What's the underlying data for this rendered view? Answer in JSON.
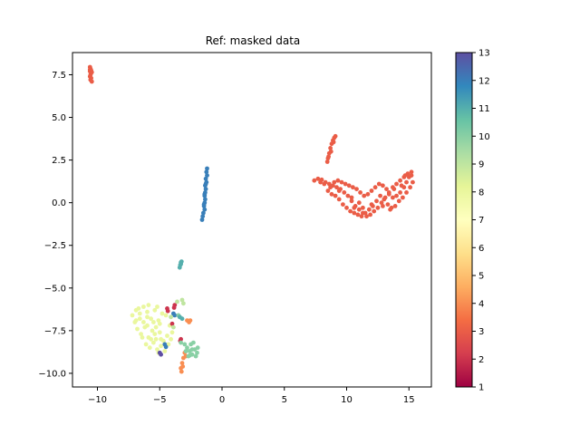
{
  "chart_data": {
    "type": "scatter",
    "title": "Ref: masked data",
    "xlabel": "",
    "ylabel": "",
    "xlim": [
      -12,
      16.8
    ],
    "ylim": [
      -10.8,
      8.8
    ],
    "x_ticks": [
      -10,
      -5,
      0,
      5,
      10,
      15
    ],
    "x_tick_labels": [
      "−10",
      "−5",
      "0",
      "5",
      "10",
      "15"
    ],
    "y_ticks": [
      -10.0,
      -7.5,
      -5.0,
      -2.5,
      0.0,
      2.5,
      5.0,
      7.5
    ],
    "y_tick_labels": [
      "−10.0",
      "−7.5",
      "−5.0",
      "−2.5",
      "0.0",
      "2.5",
      "5.0",
      "7.5"
    ],
    "grid": false,
    "colormap": "Spectral",
    "colorbar": {
      "range": [
        1,
        13
      ],
      "ticks": [
        1,
        2,
        3,
        4,
        5,
        6,
        7,
        8,
        9,
        10,
        11,
        12,
        13
      ],
      "tick_labels": [
        "1",
        "2",
        "3",
        "4",
        "5",
        "6",
        "7",
        "8",
        "9",
        "10",
        "11",
        "12",
        "13"
      ],
      "colors": [
        "#9e0142",
        "#d53e4f",
        "#f46d43",
        "#fdae61",
        "#fee08b",
        "#ffffbf",
        "#e6f598",
        "#abdda4",
        "#66c2a5",
        "#3288bd",
        "#5e4fa2"
      ]
    },
    "clusters": [
      {
        "value": 3,
        "points": [
          [
            -10.6,
            7.95
          ],
          [
            -10.55,
            7.85
          ],
          [
            -10.5,
            7.75
          ],
          [
            -10.6,
            7.7
          ],
          [
            -10.5,
            7.6
          ],
          [
            -10.55,
            7.5
          ],
          [
            -10.6,
            7.4
          ],
          [
            -10.5,
            7.3
          ],
          [
            -10.55,
            7.2
          ],
          [
            -10.45,
            7.1
          ],
          [
            -10.6,
            7.8
          ],
          [
            -10.45,
            7.65
          ]
        ]
      },
      {
        "value": 12,
        "points": [
          [
            -1.2,
            2.0
          ],
          [
            -1.25,
            1.8
          ],
          [
            -1.2,
            1.6
          ],
          [
            -1.3,
            1.4
          ],
          [
            -1.25,
            1.2
          ],
          [
            -1.35,
            1.0
          ],
          [
            -1.3,
            0.8
          ],
          [
            -1.35,
            0.6
          ],
          [
            -1.4,
            0.4
          ],
          [
            -1.35,
            0.2
          ],
          [
            -1.4,
            0.0
          ],
          [
            -1.45,
            -0.2
          ],
          [
            -1.4,
            -0.4
          ],
          [
            -1.5,
            -0.6
          ],
          [
            -1.55,
            -0.8
          ],
          [
            -1.6,
            -1.0
          ],
          [
            -1.3,
            1.1
          ],
          [
            -1.4,
            0.5
          ],
          [
            -1.45,
            -0.1
          ]
        ]
      },
      {
        "value": 11,
        "points": [
          [
            -3.3,
            -3.5
          ],
          [
            -3.35,
            -3.65
          ],
          [
            -3.4,
            -3.8
          ],
          [
            -3.3,
            -3.6
          ],
          [
            -3.25,
            -3.45
          ]
        ]
      },
      {
        "value": 3,
        "points": [
          [
            7.4,
            1.3
          ],
          [
            7.7,
            1.4
          ],
          [
            8.0,
            1.35
          ],
          [
            8.3,
            1.2
          ],
          [
            8.6,
            1.1
          ],
          [
            8.9,
            1.0
          ],
          [
            9.2,
            0.9
          ],
          [
            9.5,
            0.8
          ],
          [
            9.8,
            0.6
          ],
          [
            10.1,
            0.4
          ],
          [
            10.4,
            0.1
          ],
          [
            10.7,
            -0.2
          ],
          [
            11.0,
            -0.4
          ],
          [
            11.3,
            -0.6
          ],
          [
            11.6,
            -0.8
          ],
          [
            11.9,
            -0.7
          ],
          [
            12.2,
            -0.5
          ],
          [
            12.5,
            -0.3
          ],
          [
            12.8,
            0.0
          ],
          [
            13.1,
            0.3
          ],
          [
            13.4,
            0.6
          ],
          [
            13.7,
            0.9
          ],
          [
            14.0,
            1.1
          ],
          [
            14.3,
            1.3
          ],
          [
            14.6,
            1.5
          ],
          [
            14.9,
            1.7
          ],
          [
            15.2,
            1.8
          ],
          [
            15.0,
            1.5
          ],
          [
            14.8,
            1.2
          ],
          [
            14.6,
            0.9
          ],
          [
            14.3,
            0.6
          ],
          [
            14.0,
            0.4
          ],
          [
            13.7,
            0.3
          ],
          [
            13.4,
            0.5
          ],
          [
            13.2,
            0.8
          ],
          [
            12.9,
            1.0
          ],
          [
            12.6,
            1.1
          ],
          [
            12.3,
            0.9
          ],
          [
            12.0,
            0.7
          ],
          [
            11.7,
            0.5
          ],
          [
            11.4,
            0.4
          ],
          [
            11.1,
            0.6
          ],
          [
            10.8,
            0.8
          ],
          [
            10.5,
            0.9
          ],
          [
            10.2,
            1.0
          ],
          [
            9.9,
            1.1
          ],
          [
            9.6,
            1.2
          ],
          [
            9.3,
            1.3
          ],
          [
            9.0,
            1.2
          ],
          [
            8.7,
            0.9
          ],
          [
            8.5,
            0.7
          ],
          [
            8.8,
            0.5
          ],
          [
            9.1,
            0.4
          ],
          [
            9.4,
            0.2
          ],
          [
            9.7,
            -0.1
          ],
          [
            10.0,
            -0.3
          ],
          [
            10.3,
            -0.5
          ],
          [
            10.6,
            -0.6
          ],
          [
            10.9,
            -0.7
          ],
          [
            11.2,
            -0.8
          ],
          [
            11.5,
            -0.6
          ],
          [
            11.8,
            -0.4
          ],
          [
            12.1,
            -0.2
          ],
          [
            12.4,
            0.1
          ],
          [
            12.7,
            0.4
          ],
          [
            13.0,
            0.2
          ],
          [
            13.3,
            -0.1
          ],
          [
            13.6,
            -0.3
          ],
          [
            13.9,
            -0.2
          ],
          [
            14.2,
            0.1
          ],
          [
            14.5,
            0.3
          ],
          [
            14.8,
            0.6
          ],
          [
            15.1,
            0.9
          ],
          [
            15.3,
            1.2
          ],
          [
            15.2,
            1.6
          ],
          [
            14.4,
            1.0
          ],
          [
            13.5,
            -0.4
          ],
          [
            12.9,
            -0.2
          ],
          [
            11.0,
            0.0
          ],
          [
            10.4,
            0.3
          ],
          [
            9.4,
            0.7
          ],
          [
            8.2,
            1.1
          ],
          [
            7.9,
            1.2
          ],
          [
            8.5,
            2.6
          ],
          [
            8.6,
            2.9
          ],
          [
            8.7,
            3.2
          ],
          [
            8.8,
            3.45
          ],
          [
            8.9,
            3.65
          ],
          [
            9.0,
            3.8
          ],
          [
            9.1,
            3.9
          ],
          [
            8.95,
            3.55
          ],
          [
            8.75,
            3.0
          ],
          [
            8.55,
            2.7
          ],
          [
            8.45,
            2.4
          ],
          [
            12.0,
            -0.1
          ],
          [
            13.8,
            0.8
          ],
          [
            14.7,
            1.6
          ],
          [
            10.6,
            -0.3
          ],
          [
            11.3,
            -0.3
          ]
        ]
      },
      {
        "value": 8,
        "points": [
          [
            -7.2,
            -6.6
          ],
          [
            -6.9,
            -6.9
          ],
          [
            -6.6,
            -6.5
          ],
          [
            -6.3,
            -7.0
          ],
          [
            -6.0,
            -6.4
          ],
          [
            -5.7,
            -6.8
          ],
          [
            -5.4,
            -6.3
          ],
          [
            -5.1,
            -6.9
          ],
          [
            -4.8,
            -6.5
          ],
          [
            -6.8,
            -7.4
          ],
          [
            -6.5,
            -7.7
          ],
          [
            -6.2,
            -7.3
          ],
          [
            -5.9,
            -7.9
          ],
          [
            -5.6,
            -7.5
          ],
          [
            -5.3,
            -8.0
          ],
          [
            -5.0,
            -7.6
          ],
          [
            -4.7,
            -8.1
          ],
          [
            -4.4,
            -7.8
          ],
          [
            -6.1,
            -8.3
          ],
          [
            -5.8,
            -8.5
          ],
          [
            -5.5,
            -8.2
          ],
          [
            -5.2,
            -8.6
          ],
          [
            -4.9,
            -8.4
          ],
          [
            -4.6,
            -8.7
          ],
          [
            -7.0,
            -7.0
          ],
          [
            -6.7,
            -6.2
          ],
          [
            -5.9,
            -6.0
          ],
          [
            -5.2,
            -6.1
          ],
          [
            -4.5,
            -6.6
          ],
          [
            -4.2,
            -7.2
          ],
          [
            -6.4,
            -7.9
          ],
          [
            -5.0,
            -7.1
          ],
          [
            -6.0,
            -7.2
          ],
          [
            -5.5,
            -7.0
          ],
          [
            -4.9,
            -8.0
          ],
          [
            -5.3,
            -7.3
          ],
          [
            -6.6,
            -6.8
          ],
          [
            -4.3,
            -8.3
          ],
          [
            -5.7,
            -8.0
          ],
          [
            -6.9,
            -6.3
          ],
          [
            -4.0,
            -7.6
          ],
          [
            -4.1,
            -8.0
          ],
          [
            -5.1,
            -8.8
          ],
          [
            -6.3,
            -6.1
          ],
          [
            -6.0,
            -6.7
          ],
          [
            -5.4,
            -7.7
          ]
        ]
      },
      {
        "value": 2,
        "points": [
          [
            -4.4,
            -6.2
          ],
          [
            -4.35,
            -6.35
          ],
          [
            -3.8,
            -6.0
          ],
          [
            -3.85,
            -6.15
          ],
          [
            -3.3,
            -8.0
          ],
          [
            -3.35,
            -8.1
          ],
          [
            -4.0,
            -7.1
          ]
        ]
      },
      {
        "value": 12,
        "points": [
          [
            -3.9,
            -6.5
          ],
          [
            -3.8,
            -6.6
          ],
          [
            -4.6,
            -8.3
          ],
          [
            -4.5,
            -8.45
          ]
        ]
      },
      {
        "value": 13,
        "points": [
          [
            -5.0,
            -8.8
          ],
          [
            -4.9,
            -8.9
          ]
        ]
      },
      {
        "value": 9,
        "points": [
          [
            -3.6,
            -5.8
          ],
          [
            -3.2,
            -5.7
          ],
          [
            -3.1,
            -5.9
          ],
          [
            -4.1,
            -6.7
          ],
          [
            -3.9,
            -7.3
          ]
        ]
      },
      {
        "value": 10,
        "points": [
          [
            -3.5,
            -6.6
          ],
          [
            -3.4,
            -6.7
          ]
        ]
      },
      {
        "value": 4,
        "points": [
          [
            -2.8,
            -6.9
          ],
          [
            -2.65,
            -7.0
          ],
          [
            -2.55,
            -6.9
          ],
          [
            -3.0,
            -8.8
          ],
          [
            -3.1,
            -9.1
          ],
          [
            -3.2,
            -9.4
          ],
          [
            -3.3,
            -9.7
          ],
          [
            -3.25,
            -9.9
          ],
          [
            -3.15,
            -9.6
          ],
          [
            -2.9,
            -9.0
          ]
        ]
      },
      {
        "value": 10,
        "points": [
          [
            -2.8,
            -8.5
          ],
          [
            -2.6,
            -8.7
          ],
          [
            -2.4,
            -8.9
          ],
          [
            -2.2,
            -8.6
          ],
          [
            -2.0,
            -8.8
          ],
          [
            -2.5,
            -8.3
          ],
          [
            -2.3,
            -8.2
          ],
          [
            -2.7,
            -9.0
          ],
          [
            -2.1,
            -9.0
          ],
          [
            -2.4,
            -8.6
          ],
          [
            -3.0,
            -8.3
          ],
          [
            -2.9,
            -8.7
          ],
          [
            -3.3,
            -8.2
          ],
          [
            -1.95,
            -8.5
          ],
          [
            -2.6,
            -8.95
          ]
        ]
      },
      {
        "value": 11,
        "points": [
          [
            -3.4,
            -6.7
          ],
          [
            -3.2,
            -6.8
          ]
        ]
      }
    ]
  }
}
